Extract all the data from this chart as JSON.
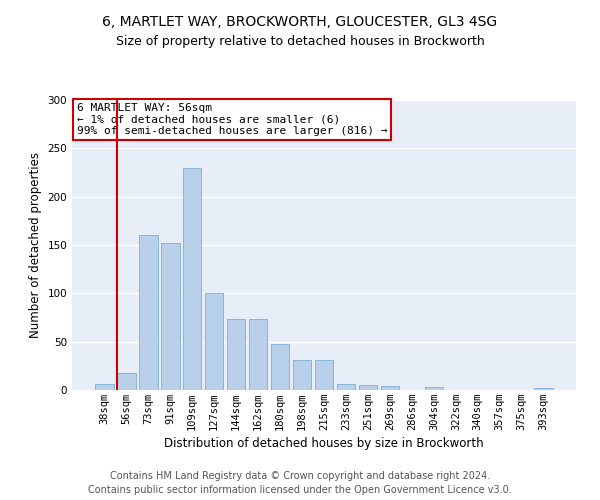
{
  "title1": "6, MARTLET WAY, BROCKWORTH, GLOUCESTER, GL3 4SG",
  "title2": "Size of property relative to detached houses in Brockworth",
  "xlabel": "Distribution of detached houses by size in Brockworth",
  "ylabel": "Number of detached properties",
  "categories": [
    "38sqm",
    "56sqm",
    "73sqm",
    "91sqm",
    "109sqm",
    "127sqm",
    "144sqm",
    "162sqm",
    "180sqm",
    "198sqm",
    "215sqm",
    "233sqm",
    "251sqm",
    "269sqm",
    "286sqm",
    "304sqm",
    "322sqm",
    "340sqm",
    "357sqm",
    "375sqm",
    "393sqm"
  ],
  "values": [
    6,
    18,
    160,
    152,
    230,
    100,
    73,
    73,
    48,
    31,
    31,
    6,
    5,
    4,
    0,
    3,
    0,
    0,
    0,
    0,
    2
  ],
  "bar_color": "#b8d0ea",
  "bar_edge_color": "#7aafd4",
  "highlight_index": 1,
  "highlight_line_color": "#cc0000",
  "annotation_text": "6 MARTLET WAY: 56sqm\n← 1% of detached houses are smaller (6)\n99% of semi-detached houses are larger (816) →",
  "annotation_box_color": "#ffffff",
  "annotation_box_edge_color": "#cc0000",
  "ylim": [
    0,
    300
  ],
  "yticks": [
    0,
    50,
    100,
    150,
    200,
    250,
    300
  ],
  "bg_color": "#e8eef8",
  "footer_line1": "Contains HM Land Registry data © Crown copyright and database right 2024.",
  "footer_line2": "Contains public sector information licensed under the Open Government Licence v3.0.",
  "title1_fontsize": 10,
  "title2_fontsize": 9,
  "axis_label_fontsize": 8.5,
  "tick_fontsize": 7.5,
  "annotation_fontsize": 8,
  "footer_fontsize": 7
}
